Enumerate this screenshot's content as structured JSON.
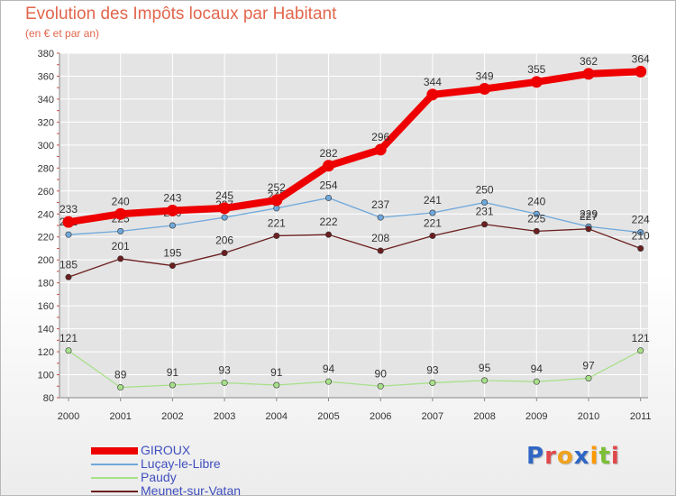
{
  "header": {
    "title": "Evolution des Impôts locaux par Habitant",
    "subtitle": "(en € et par an)"
  },
  "logo": {
    "letters": [
      "P",
      "r",
      "o",
      "x",
      "i",
      "t",
      "i"
    ]
  },
  "colors": {
    "title": "#e2664c",
    "axis": "#888888",
    "grid": "#ffffff",
    "plot_bg": "#e4e4e4",
    "axis_text": "#333333",
    "legend_text": "#3f4fbf",
    "logo": [
      "#2f66c4",
      "#e0484b",
      "#f0a21c",
      "#2f66c4",
      "#ff9900",
      "#7bbf34",
      "#e0484b"
    ]
  },
  "chart_data": {
    "type": "line",
    "title": "Evolution des Impôts locaux par Habitant",
    "subtitle": "(en € et par an)",
    "xlabel": "",
    "ylabel": "",
    "ylim": [
      80,
      380
    ],
    "yticks": [
      80,
      100,
      120,
      140,
      160,
      180,
      200,
      220,
      240,
      260,
      280,
      300,
      320,
      340,
      360,
      380
    ],
    "grid": true,
    "legend_position": "bottom-left",
    "categories": [
      "2000",
      "2001",
      "2002",
      "2003",
      "2004",
      "2005",
      "2006",
      "2007",
      "2008",
      "2009",
      "2010",
      "2011"
    ],
    "series": [
      {
        "name": "GIROUX",
        "color": "#ee0000",
        "bold": true,
        "values": [
          233,
          240,
          243,
          245,
          252,
          282,
          296,
          344,
          349,
          355,
          362,
          364
        ],
        "labels": [
          "233",
          "240",
          "243",
          "245",
          "252",
          "282",
          "296",
          "344",
          "349",
          "355",
          "362",
          "364"
        ]
      },
      {
        "name": "Luçay-le-Libre",
        "color": "#6fa8dc",
        "bold": false,
        "values": [
          222,
          225,
          230,
          237,
          245,
          254,
          237,
          241,
          250,
          240,
          229,
          224
        ],
        "labels": [
          "222",
          "225",
          "230",
          "237",
          "245",
          "254",
          "237",
          "241",
          "250",
          "240",
          "229",
          "224"
        ]
      },
      {
        "name": "Paudy",
        "color": "#a8e08a",
        "bold": false,
        "values": [
          121,
          89,
          91,
          93,
          91,
          94,
          90,
          93,
          95,
          94,
          97,
          121
        ],
        "labels": [
          "121",
          "89",
          "91",
          "93",
          "91",
          "94",
          "90",
          "93",
          "95",
          "94",
          "97",
          "121"
        ]
      },
      {
        "name": "Meunet-sur-Vatan",
        "color": "#6b1f1f",
        "bold": false,
        "values": [
          185,
          201,
          195,
          206,
          221,
          222,
          208,
          221,
          231,
          225,
          227,
          210
        ],
        "labels": [
          "185",
          "201",
          "195",
          "206",
          "221",
          "222",
          "208",
          "221",
          "231",
          "225",
          "227",
          "210"
        ]
      }
    ]
  }
}
